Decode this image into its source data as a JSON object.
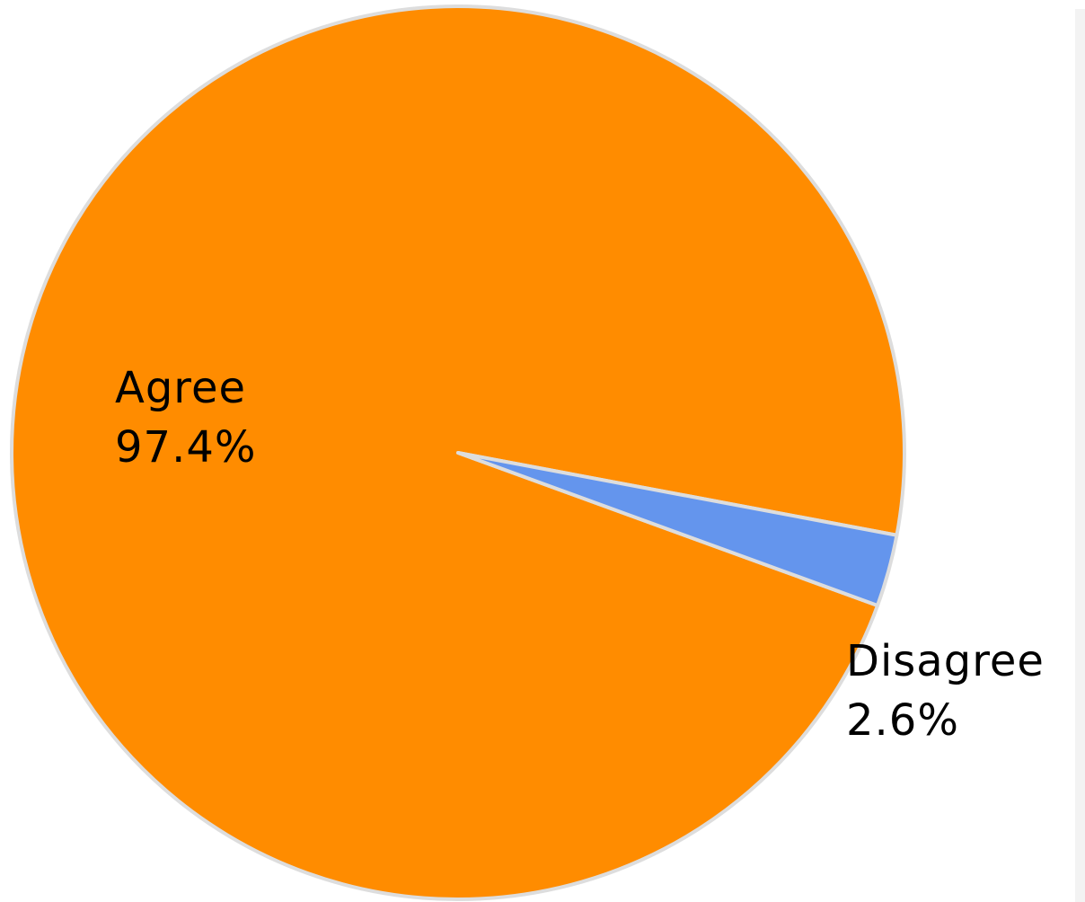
{
  "chart_data": {
    "type": "pie",
    "slices": [
      {
        "label": "Agree",
        "value": 97.4,
        "value_label": "97.4%",
        "color": "#ff8c00"
      },
      {
        "label": "Disagree",
        "value": 2.6,
        "value_label": "2.6%",
        "color": "#6495ed"
      }
    ],
    "slice_border_color": "#dddddd",
    "label_color": "#000000",
    "legend": "none"
  }
}
